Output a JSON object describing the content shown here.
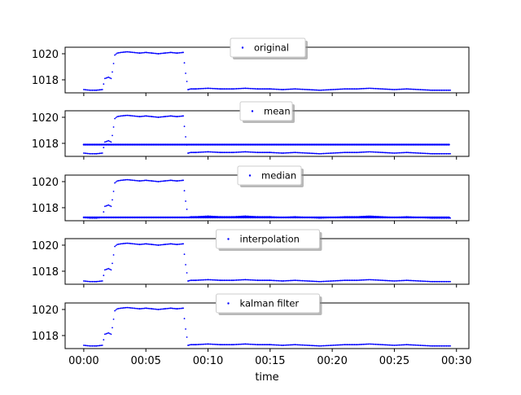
{
  "figure": {
    "xlabel": "time"
  },
  "colors": {
    "series": "#0000ff",
    "frame": "#000000",
    "legend_edge": "#cccccc",
    "legend_shadow": "#888888"
  },
  "chart_data": [
    {
      "type": "scatter",
      "legend": "original",
      "ylim": [
        1017.0,
        1020.5
      ],
      "yticks": [
        1018,
        1020
      ],
      "xlim": [
        -1.5,
        31
      ],
      "xticks": [
        0,
        5,
        10,
        15,
        20,
        25,
        30
      ],
      "xtick_labels": [],
      "fill_line": null,
      "series": [
        {
          "name": "original",
          "x": [
            0,
            0.5,
            1,
            1.5,
            1.7,
            2.0,
            2.2,
            2.3,
            2.5,
            2.7,
            3,
            3.5,
            4,
            4.5,
            5,
            5.5,
            6,
            6.5,
            7,
            7.5,
            8,
            8.2,
            8.4,
            8.6,
            9,
            10,
            11,
            12,
            13,
            14,
            15,
            16,
            17,
            18,
            19,
            20,
            21,
            22,
            23,
            24,
            25,
            26,
            27,
            28,
            29,
            29.5
          ],
          "y": [
            1017.25,
            1017.2,
            1017.2,
            1017.25,
            1018.1,
            1018.2,
            1018.1,
            1018.6,
            1019.9,
            1020.05,
            1020.1,
            1020.15,
            1020.1,
            1020.05,
            1020.1,
            1020.05,
            1020.0,
            1020.05,
            1020.1,
            1020.05,
            1020.1,
            1018.5,
            1017.25,
            1017.3,
            1017.3,
            1017.35,
            1017.3,
            1017.3,
            1017.35,
            1017.3,
            1017.3,
            1017.25,
            1017.3,
            1017.25,
            1017.2,
            1017.25,
            1017.3,
            1017.3,
            1017.35,
            1017.3,
            1017.25,
            1017.3,
            1017.25,
            1017.2,
            1017.2,
            1017.2
          ]
        }
      ]
    },
    {
      "type": "scatter",
      "legend": "mean",
      "ylim": [
        1017.0,
        1020.5
      ],
      "yticks": [
        1018,
        1020
      ],
      "xlim": [
        -1.5,
        31
      ],
      "xticks": [
        0,
        5,
        10,
        15,
        20,
        25,
        30
      ],
      "xtick_labels": [],
      "fill_line": 1017.9,
      "series": [
        {
          "name": "mean",
          "x": [
            0,
            0.5,
            1,
            1.5,
            1.7,
            2.0,
            2.2,
            2.3,
            2.5,
            2.7,
            3,
            3.5,
            4,
            4.5,
            5,
            5.5,
            6,
            6.5,
            7,
            7.5,
            8,
            8.2,
            8.4,
            8.6,
            9,
            10,
            11,
            12,
            13,
            14,
            15,
            16,
            17,
            18,
            19,
            20,
            21,
            22,
            23,
            24,
            25,
            26,
            27,
            28,
            29,
            29.5
          ],
          "y": [
            1017.25,
            1017.2,
            1017.2,
            1017.25,
            1018.1,
            1018.2,
            1018.1,
            1018.6,
            1019.9,
            1020.05,
            1020.1,
            1020.15,
            1020.1,
            1020.05,
            1020.1,
            1020.05,
            1020.0,
            1020.05,
            1020.1,
            1020.05,
            1020.1,
            1018.5,
            1017.25,
            1017.3,
            1017.3,
            1017.35,
            1017.3,
            1017.3,
            1017.35,
            1017.3,
            1017.3,
            1017.25,
            1017.3,
            1017.25,
            1017.2,
            1017.25,
            1017.3,
            1017.3,
            1017.35,
            1017.3,
            1017.25,
            1017.3,
            1017.25,
            1017.2,
            1017.2,
            1017.2
          ]
        }
      ]
    },
    {
      "type": "scatter",
      "legend": "median",
      "ylim": [
        1017.0,
        1020.5
      ],
      "yticks": [
        1018,
        1020
      ],
      "xlim": [
        -1.5,
        31
      ],
      "xticks": [
        0,
        5,
        10,
        15,
        20,
        25,
        30
      ],
      "xtick_labels": [],
      "fill_line": 1017.25,
      "series": [
        {
          "name": "median",
          "x": [
            0,
            0.5,
            1,
            1.5,
            1.7,
            2.0,
            2.2,
            2.3,
            2.5,
            2.7,
            3,
            3.5,
            4,
            4.5,
            5,
            5.5,
            6,
            6.5,
            7,
            7.5,
            8,
            8.2,
            8.4,
            8.6,
            9,
            10,
            11,
            12,
            13,
            14,
            15,
            16,
            17,
            18,
            19,
            20,
            21,
            22,
            23,
            24,
            25,
            26,
            27,
            28,
            29,
            29.5
          ],
          "y": [
            1017.25,
            1017.2,
            1017.2,
            1017.25,
            1018.1,
            1018.2,
            1018.1,
            1018.6,
            1019.9,
            1020.05,
            1020.1,
            1020.15,
            1020.1,
            1020.05,
            1020.1,
            1020.05,
            1020.0,
            1020.05,
            1020.1,
            1020.05,
            1020.1,
            1018.5,
            1017.25,
            1017.3,
            1017.3,
            1017.35,
            1017.3,
            1017.3,
            1017.35,
            1017.3,
            1017.3,
            1017.25,
            1017.3,
            1017.25,
            1017.2,
            1017.25,
            1017.3,
            1017.3,
            1017.35,
            1017.3,
            1017.25,
            1017.3,
            1017.25,
            1017.2,
            1017.2,
            1017.2
          ]
        }
      ]
    },
    {
      "type": "scatter",
      "legend": "interpolation",
      "ylim": [
        1017.0,
        1020.5
      ],
      "yticks": [
        1018,
        1020
      ],
      "xlim": [
        -1.5,
        31
      ],
      "xticks": [
        0,
        5,
        10,
        15,
        20,
        25,
        30
      ],
      "xtick_labels": [],
      "fill_line": null,
      "series": [
        {
          "name": "interpolation",
          "x": [
            0,
            0.5,
            1,
            1.5,
            1.7,
            2.0,
            2.2,
            2.3,
            2.5,
            2.7,
            3,
            3.5,
            4,
            4.5,
            5,
            5.5,
            6,
            6.5,
            7,
            7.5,
            8,
            8.2,
            8.4,
            8.6,
            9,
            10,
            11,
            12,
            13,
            14,
            15,
            16,
            17,
            18,
            19,
            20,
            21,
            22,
            23,
            24,
            25,
            26,
            27,
            28,
            29,
            29.5
          ],
          "y": [
            1017.25,
            1017.2,
            1017.2,
            1017.25,
            1018.1,
            1018.2,
            1018.1,
            1018.6,
            1019.9,
            1020.05,
            1020.1,
            1020.15,
            1020.1,
            1020.05,
            1020.1,
            1020.05,
            1020.0,
            1020.05,
            1020.1,
            1020.05,
            1020.1,
            1018.5,
            1017.25,
            1017.3,
            1017.3,
            1017.35,
            1017.3,
            1017.3,
            1017.35,
            1017.3,
            1017.3,
            1017.25,
            1017.3,
            1017.25,
            1017.2,
            1017.25,
            1017.3,
            1017.3,
            1017.35,
            1017.3,
            1017.25,
            1017.3,
            1017.25,
            1017.2,
            1017.2,
            1017.2
          ]
        }
      ]
    },
    {
      "type": "scatter",
      "legend": "kalman filter",
      "ylim": [
        1017.0,
        1020.5
      ],
      "yticks": [
        1018,
        1020
      ],
      "xlim": [
        -1.5,
        31
      ],
      "xticks": [
        0,
        5,
        10,
        15,
        20,
        25,
        30
      ],
      "xtick_labels": [
        "00:00",
        "00:05",
        "00:10",
        "00:15",
        "00:20",
        "00:25",
        "00:30"
      ],
      "fill_line": null,
      "series": [
        {
          "name": "kalman filter",
          "x": [
            0,
            0.5,
            1,
            1.5,
            1.7,
            2.0,
            2.2,
            2.3,
            2.5,
            2.7,
            3,
            3.5,
            4,
            4.5,
            5,
            5.5,
            6,
            6.5,
            7,
            7.5,
            8,
            8.2,
            8.4,
            8.6,
            9,
            10,
            11,
            12,
            13,
            14,
            15,
            16,
            17,
            18,
            19,
            20,
            21,
            22,
            23,
            24,
            25,
            26,
            27,
            28,
            29,
            29.5
          ],
          "y": [
            1017.25,
            1017.2,
            1017.2,
            1017.25,
            1018.1,
            1018.2,
            1018.1,
            1018.6,
            1019.9,
            1020.05,
            1020.1,
            1020.15,
            1020.1,
            1020.05,
            1020.1,
            1020.05,
            1020.0,
            1020.05,
            1020.1,
            1020.05,
            1020.1,
            1018.5,
            1017.25,
            1017.3,
            1017.3,
            1017.35,
            1017.3,
            1017.3,
            1017.35,
            1017.3,
            1017.3,
            1017.25,
            1017.3,
            1017.25,
            1017.2,
            1017.25,
            1017.3,
            1017.3,
            1017.35,
            1017.3,
            1017.25,
            1017.3,
            1017.25,
            1017.2,
            1017.2,
            1017.2
          ]
        }
      ]
    }
  ]
}
